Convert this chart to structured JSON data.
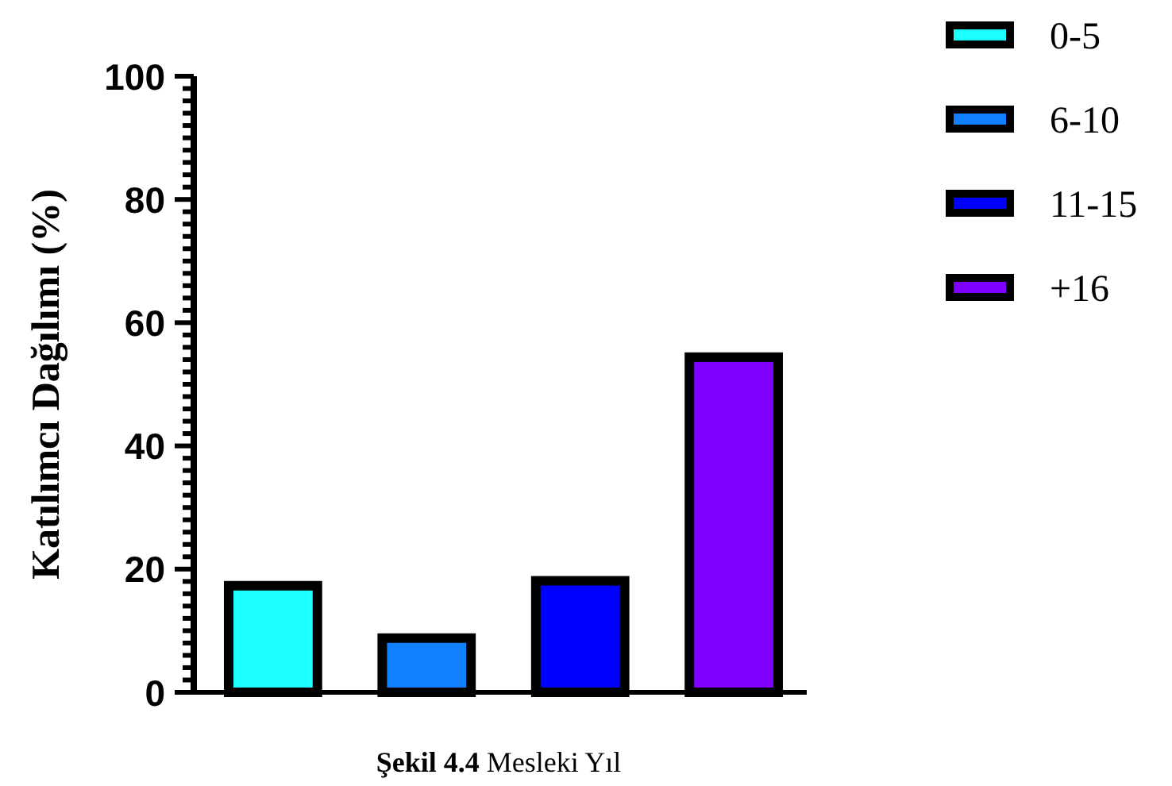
{
  "chart_data": {
    "type": "bar",
    "xlabel": "Şekil 4.4 Mesleki Yıl",
    "ylabel": "Katılımcı Dağılımı (%)",
    "categories": [
      null,
      null,
      null,
      null
    ],
    "series": [
      {
        "name": "0-5",
        "color": "#1effff",
        "values": [
          17.3,
          null,
          null,
          null
        ],
        "errors": [
          0.3,
          null,
          null,
          null
        ]
      },
      {
        "name": "6-10",
        "color": "#1180ff",
        "values": [
          null,
          8.8,
          null,
          null
        ],
        "errors": [
          null,
          0.3,
          null,
          null
        ]
      },
      {
        "name": "11-15",
        "color": "#0000ff",
        "values": [
          null,
          null,
          18.1,
          null
        ],
        "errors": [
          null,
          null,
          0.3,
          null
        ]
      },
      {
        "name": "+16",
        "color": "#7f00ff",
        "values": [
          null,
          null,
          null,
          54.4
        ],
        "errors": [
          null,
          null,
          null,
          0.3
        ]
      }
    ],
    "ylim": [
      0,
      100
    ],
    "yticks": [
      0,
      {
        "value": 2,
        "label": null
      },
      {
        "value": 4,
        "label": null
      },
      {
        "value": 6,
        "label": null
      },
      {
        "value": 8,
        "label": null
      },
      {
        "value": 10,
        "label": null
      },
      {
        "value": 12,
        "label": null
      },
      {
        "value": 14,
        "label": null
      },
      {
        "value": 16,
        "label": null
      },
      {
        "value": 18,
        "label": null
      },
      20,
      {
        "value": 22,
        "label": null
      },
      {
        "value": 24,
        "label": null
      },
      {
        "value": 26,
        "label": null
      },
      {
        "value": 28,
        "label": null
      },
      {
        "value": 30,
        "label": null
      },
      {
        "value": 32,
        "label": null
      },
      {
        "value": 34,
        "label": null
      },
      {
        "value": 36,
        "label": null
      },
      {
        "value": 38,
        "label": null
      },
      40,
      {
        "value": 42,
        "label": null
      },
      {
        "value": 44,
        "label": null
      },
      {
        "value": 46,
        "label": null
      },
      {
        "value": 48,
        "label": null
      },
      {
        "value": 50,
        "label": null
      },
      {
        "value": 52,
        "label": null
      },
      {
        "value": 54,
        "label": null
      },
      {
        "value": 56,
        "label": null
      },
      {
        "value": 58,
        "label": null
      },
      60,
      {
        "value": 62,
        "label": null
      },
      {
        "value": 64,
        "label": null
      },
      {
        "value": 66,
        "label": null
      },
      {
        "value": 68,
        "label": null
      },
      {
        "value": 70,
        "label": null
      },
      {
        "value": 72,
        "label": null
      },
      {
        "value": 74,
        "label": null
      },
      {
        "value": 76,
        "label": null
      },
      {
        "value": 78,
        "label": null
      },
      80,
      {
        "value": 82,
        "label": null
      },
      {
        "value": 84,
        "label": null
      },
      {
        "value": 86,
        "label": null
      },
      {
        "value": 88,
        "label": null
      },
      {
        "value": 90,
        "label": null
      },
      {
        "value": 92,
        "label": null
      },
      {
        "value": 94,
        "label": null
      },
      {
        "value": 96,
        "label": null
      },
      {
        "value": 98,
        "label": null
      },
      100
    ],
    "legend": "top right",
    "grid": false
  }
}
